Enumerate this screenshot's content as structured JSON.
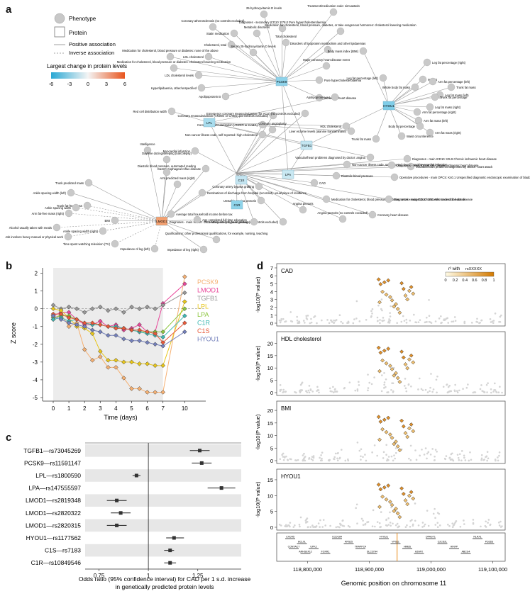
{
  "panel_labels": {
    "a": "a",
    "b": "b",
    "c": "c",
    "d": "d"
  },
  "network": {
    "legend": {
      "phenotype": "Phenotype",
      "protein": "Protein",
      "positive": "Positive association",
      "inverse": "Inverse association",
      "colorbar_title": "Largest change in protein levels",
      "colorbar_ticks": [
        "-6",
        "-3",
        "0",
        "3",
        "6"
      ]
    },
    "proteins": [
      "PCSK9",
      "HYOU1",
      "LPL",
      "TGFB1",
      "LPA",
      "C1S",
      "C1R",
      "LMOD1"
    ],
    "phenotypes": {
      "pcsk9": [
        "Coronary atherosclerosis (no controls excluded)",
        "Metabolic disorders",
        "25-hydroxyvitamin D levels",
        "Statin medication",
        "Diagnoses - secondary ICD10: E78.0 Pure hypercholesterolaemia",
        "Medication for cholesterol, blood pressure, diabetes, or take exogenous hormones: cholesterol lowering medication",
        "Treatment/medication code: simvastatin",
        "Cholesterol, total",
        "Total cholesterol",
        "Medication for cholesterol, blood pressure or diabetes: none of the above",
        "LDL cholesterol",
        "Serum 25-hydroxyvitamin D levels",
        "Disorders of lipoprotein metabolism and other lipidaemias",
        "LDL cholesterol levels",
        "Hyperlipidaemia, other/unspecified",
        "Medication for cholesterol, blood pressure or diabetes: cholesterol lowering medication",
        "Major coronary heart disease event",
        "Pure hypercholesterolaemia",
        "Apolipoprotein B",
        "Ischaemic heart disease"
      ],
      "hyou1": [
        "Body mass index (BMI)",
        "Leg fat percentage (right)",
        "Weight",
        "Leg fat percentage (left)",
        "Arm fat percentage (left)",
        "Whole body fat mass",
        "Trunk fat mass",
        "Leg fat mass (left)",
        "Trunk fat percentage",
        "Leg fat mass (right)",
        "Arm fat percentage (right)",
        "Arm fat mass (left)",
        "Body fat percentage",
        "Arm fat mass (right)",
        "Trunk fat mass",
        "Waist circumference"
      ],
      "lpl": [
        "Red cell distribution width",
        "HDL cholesterol",
        "Liver enzyme levels (alanine transaminase)",
        "Apolipoprotein A-I",
        "Vascular/heart problems diagnosed by doctor: angina"
      ],
      "cad": [
        "Coronary revascularization (ANGIO or CABG) (no controls excluded)",
        "Coronary revascularization (ANGIO or CABG)",
        "Coronary angioplasty",
        "Non-cancer illness code, self-reported: high cholesterol",
        "Emergency coronary revascularization (for ACS) (no controls excluded)",
        "Myocardial infarction",
        "Non-cancer illness code, self-reported: heart attack/myocardial infarction",
        "Coronary artery bypass grafting",
        "Medication for cholesterol, blood pressure, diabetes, or take exogenous hormones: none of the above",
        "Unstable angina pectoris",
        "Angina pectoris",
        "Angina pectoris (no controls excluded)",
        "Coronary artery bypass grafting (no controls excluded)",
        "Diagnoses - main ICD10: I25.1 Atherosclerotic heart disease",
        "Diastolic blood pressure",
        "Diagnoses - main ICD10: I25.9 Chronic ischaemic heart disease",
        "Coronary heart disease",
        "Vascular/heart problems diagnosed by doctor: heart attack",
        "Operative procedures - main OPCS: K40.1 Unspecified diagnostic endoscopic examination of bladder",
        "Diagnoses - main ICD10: I251 Atherosclerotic heart disease",
        "Diagnoses - main ICD10: I25 Chronic ischaemic heart disease",
        "CAD"
      ],
      "lmod1": [
        "Intelligence",
        "Daytime dozing/sleeping (narcolepsy)",
        "Gastroesophageal reflux disease",
        "Diastolic blood pressure, automated reading",
        "Trunk predicted mass",
        "Arm predicted mass (right)",
        "Ankle spacing width (left)",
        "Destinations of discharge from hospital (recorded): usual place of residence",
        "Trunk fat-free mass",
        "Ankle spacing width",
        "Average total household income before tax",
        "BMI",
        "Alcohol usually taken with meals",
        "Ankle spacing width (right)",
        "Arm fat-free mass (right)",
        "Job involves heavy manual or physical work",
        "Time spent watching television (TV)",
        "Impedance of leg (left)",
        "Impedance of leg (right)",
        "Age completed full time education",
        "Qualifications: other professional qualifications, for example, nursing, teaching"
      ]
    }
  },
  "chart_data": [
    {
      "id": "b",
      "type": "line",
      "xlabel": "Time (days)",
      "ylabel": "Z score",
      "x": [
        0,
        0.5,
        1,
        1.5,
        2,
        2.5,
        3,
        3.5,
        4,
        4.5,
        5,
        5.5,
        6,
        6.5,
        7,
        10
      ],
      "xticks": [
        "0",
        "1",
        "2",
        "3",
        "4",
        "5",
        "6",
        "7",
        "10"
      ],
      "ylim": [
        -5.2,
        2.3
      ],
      "yticks": [
        "2",
        "1",
        "0",
        "-1",
        "-2",
        "-3",
        "-4",
        "-5"
      ],
      "shaded_region": [
        0,
        7
      ],
      "series": [
        {
          "name": "PCSK9",
          "color": "#f5b072",
          "values": [
            -0.6,
            -0.3,
            -1.0,
            -0.8,
            -2.3,
            -2.9,
            -2.7,
            -3.3,
            -3.3,
            -3.9,
            -4.5,
            -4.5,
            -4.7,
            -4.7,
            -4.7,
            1.8
          ]
        },
        {
          "name": "LMOD1",
          "color": "#e8479a",
          "values": [
            -0.4,
            -0.2,
            -0.2,
            -0.6,
            -0.9,
            -0.9,
            -0.7,
            -1.0,
            -0.9,
            -1.2,
            -1.1,
            -0.9,
            -1.3,
            -1.3,
            0.3,
            1.4
          ]
        },
        {
          "name": "TGFB1",
          "color": "#999999",
          "values": [
            0.2,
            0.0,
            0.1,
            0.0,
            -0.2,
            0.0,
            0.1,
            -0.1,
            0.0,
            -0.2,
            0.1,
            0.0,
            0.1,
            0.0,
            0.2,
            0.9
          ]
        },
        {
          "name": "LPL",
          "color": "#e8c61a",
          "values": [
            0.0,
            -0.1,
            -0.5,
            -1.0,
            -1.1,
            -1.4,
            -2.4,
            -2.9,
            -2.9,
            -3.0,
            -3.0,
            -3.1,
            -3.1,
            -3.2,
            -3.2,
            0.4
          ]
        },
        {
          "name": "LPA",
          "color": "#8dc63f",
          "values": [
            -0.5,
            -0.4,
            -0.4,
            -0.6,
            -0.8,
            -0.9,
            -0.9,
            -1.0,
            -1.1,
            -1.1,
            -1.2,
            -1.3,
            -1.3,
            -1.3,
            -1.3,
            0.0
          ]
        },
        {
          "name": "C1R",
          "color": "#3fb8b3",
          "values": [
            -0.6,
            -0.5,
            -0.7,
            -0.6,
            -0.8,
            -0.9,
            -0.9,
            -1.0,
            -1.0,
            -1.1,
            -1.2,
            -1.3,
            -1.4,
            -1.5,
            -1.6,
            -0.4
          ]
        },
        {
          "name": "C1S",
          "color": "#e85a3a",
          "values": [
            -0.3,
            -0.3,
            -0.5,
            -0.6,
            -0.8,
            -0.8,
            -0.9,
            -1.0,
            -1.1,
            -1.1,
            -1.2,
            -1.2,
            -1.3,
            -1.4,
            -1.9,
            -0.8
          ]
        },
        {
          "name": "HYOU1",
          "color": "#7480bb",
          "values": [
            -0.4,
            -0.6,
            -0.8,
            -0.9,
            -1.0,
            -1.2,
            -1.3,
            -1.5,
            -1.5,
            -1.7,
            -1.8,
            -1.8,
            -1.9,
            -2.0,
            -2.1,
            -1.3
          ]
        }
      ]
    },
    {
      "id": "c",
      "type": "scatter",
      "title": "",
      "xlabel": "Odds ratio (95% confidence interval) for CAD per 1 s.d. increase",
      "xlabel2": "in genetically predicted protein levels",
      "xlim": [
        0.68,
        1.47
      ],
      "xticks": [
        "0.75",
        "1",
        "1.25"
      ],
      "reference_line": 1,
      "rows": [
        {
          "label": "TGFB1—rs73045269",
          "or": 1.26,
          "lo": 1.21,
          "hi": 1.31
        },
        {
          "label": "PCSK9—rs11591147",
          "or": 1.27,
          "lo": 1.22,
          "hi": 1.32
        },
        {
          "label": "LPL—rs1800590",
          "or": 0.94,
          "lo": 0.92,
          "hi": 0.96
        },
        {
          "label": "LPA—rs147555597",
          "or": 1.37,
          "lo": 1.3,
          "hi": 1.44
        },
        {
          "label": "LMOD1—rs2819348",
          "or": 0.84,
          "lo": 0.79,
          "hi": 0.89
        },
        {
          "label": "LMOD1—rs2820322",
          "or": 0.86,
          "lo": 0.81,
          "hi": 0.91
        },
        {
          "label": "LMOD1—rs2820315",
          "or": 0.84,
          "lo": 0.79,
          "hi": 0.89
        },
        {
          "label": "HYOU1—rs1177562",
          "or": 1.13,
          "lo": 1.09,
          "hi": 1.18
        },
        {
          "label": "C1S—rs7183",
          "or": 1.11,
          "lo": 1.08,
          "hi": 1.13
        },
        {
          "label": "C1R—rs10849546",
          "or": 1.11,
          "lo": 1.08,
          "hi": 1.14
        }
      ]
    },
    {
      "id": "d",
      "type": "scatter",
      "xlabel": "Genomic position on chromosome 11",
      "ylabel": "-log10(P value)",
      "xlim": [
        118750000,
        119120000
      ],
      "xticks": [
        "118,800,000",
        "118,900,000",
        "119,000,000",
        "119,100,000"
      ],
      "legend_title": "r² with",
      "legend_subtitle": "rsXXXXX",
      "legend_ticks": [
        "0",
        "0.2",
        "0.4",
        "0.6",
        "0.8",
        "1"
      ],
      "lead_position": 118945000,
      "subplots": [
        {
          "name": "CAD",
          "ylim": [
            0,
            7
          ],
          "yticks": [
            "7",
            "6",
            "5",
            "4",
            "3",
            "2",
            "1",
            "0"
          ]
        },
        {
          "name": "HDL cholesterol",
          "ylim": [
            0,
            23
          ],
          "yticks": [
            "20",
            "15",
            "10",
            "5",
            "0"
          ]
        },
        {
          "name": "BMI",
          "ylim": [
            0,
            22
          ],
          "yticks": [
            "20",
            "15",
            "10",
            "5",
            "0"
          ]
        },
        {
          "name": "HYOU1",
          "ylim": [
            0,
            17
          ],
          "yticks": [
            "15",
            "10",
            "5",
            "0"
          ]
        }
      ],
      "genes": [
        "CXCR5",
        "BCL9L",
        "UPK2",
        "FOXR1",
        "CCDC84",
        "RPS25",
        "TRAPPC4",
        "SLC37A4",
        "HYOU1",
        "VPS11",
        "HMBS",
        "H2AFX",
        "DPAGT1",
        "C2CD2L",
        "HINFP",
        "ABCG4",
        "NLRX1",
        "PDZD3",
        "CONTACT",
        "ARHGEF12"
      ]
    }
  ]
}
